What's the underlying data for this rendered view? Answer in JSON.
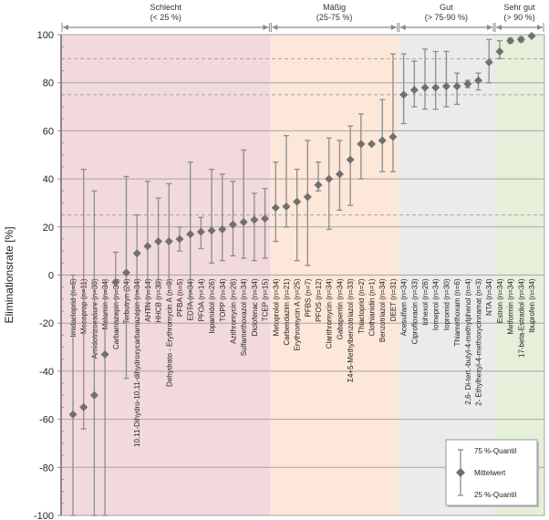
{
  "chart_data": {
    "type": "scatter",
    "subtype": "mean-with-quantile-range",
    "ylabel": "Eliminationsrate [%]",
    "ylim": [
      -100,
      100
    ],
    "yticks": [
      100,
      80,
      60,
      40,
      20,
      0,
      -20,
      -40,
      -60,
      -80,
      -100
    ],
    "grid": true,
    "dashed_reference_lines": [
      90,
      75,
      25
    ],
    "zones": [
      {
        "name": "Schlecht",
        "range_label": "(< 25 %)",
        "color": "#f2d9dc",
        "first": 0,
        "last": 18
      },
      {
        "name": "Mäßig",
        "range_label": "(25-75 %)",
        "color": "#fde7d8",
        "first": 19,
        "last": 30
      },
      {
        "name": "Gut",
        "range_label": "(> 75-90 %)",
        "color": "#ebebeb",
        "first": 31,
        "last": 39
      },
      {
        "name": "Sehr gut",
        "range_label": "(> 90 %)",
        "color": "#e6efd9",
        "first": 40,
        "last": 43
      }
    ],
    "legend": {
      "position": "bottom-right",
      "q75": "75 %-Quantil",
      "mean": "Mittelwert",
      "q25": "25 %-Quantil"
    },
    "substances": [
      {
        "label": "Imidacloprid (n=6)",
        "mean": -58,
        "q75": 0,
        "q25": -100
      },
      {
        "label": "Mecoprop (n=11)",
        "mean": -55,
        "q75": 44,
        "q25": -64
      },
      {
        "label": "Amidotrizoesäure (n=30)",
        "mean": -50,
        "q75": 35,
        "q25": -100
      },
      {
        "label": "Melamin (n=34)",
        "mean": -33,
        "q75": -2,
        "q25": -100
      },
      {
        "label": "Carbamazepin (n=34)",
        "mean": -3,
        "q75": 9.5,
        "q25": -20
      },
      {
        "label": "Terbutryn (24)",
        "mean": 1,
        "q75": 41,
        "q25": -43
      },
      {
        "label": "10,11-Dihydro-10,11-dihydroxycarbamazepin (n=34)",
        "mean": 9,
        "q75": 25,
        "q25": -16
      },
      {
        "label": "AHTN (n=14)",
        "mean": 12,
        "q75": 39,
        "q25": -14
      },
      {
        "label": "HHCB (n=39)",
        "mean": 14,
        "q75": 32,
        "q25": -4
      },
      {
        "label": "Dehydrato - Erythromycin A (n=9)",
        "mean": 14,
        "q75": 38,
        "q25": -4
      },
      {
        "label": "PFBA (n=5)",
        "mean": 15,
        "q75": 20,
        "q25": 10
      },
      {
        "label": "EDTA (n=34)",
        "mean": 17,
        "q75": 47,
        "q25": -14
      },
      {
        "label": "PFOA (n=14)",
        "mean": 18,
        "q75": 24,
        "q25": 11
      },
      {
        "label": "Iopamidol (n=26)",
        "mean": 18.5,
        "q75": 44,
        "q25": 5
      },
      {
        "label": "TOPP (n=34)",
        "mean": 19,
        "q75": 42,
        "q25": 6
      },
      {
        "label": "Azithromycin (n=26)",
        "mean": 21,
        "q75": 39,
        "q25": 8
      },
      {
        "label": "Sulfamethoxazol (n=34)",
        "mean": 22,
        "q75": 52,
        "q25": 7
      },
      {
        "label": "Diclofenac (n=34)",
        "mean": 23,
        "q75": 34,
        "q25": 6
      },
      {
        "label": "TCEP (n=15)",
        "mean": 23.5,
        "q75": 36,
        "q25": 7
      },
      {
        "label": "Metoprolol (n=34)",
        "mean": 28,
        "q75": 47,
        "q25": 14
      },
      {
        "label": "Carbendazim (n=21)",
        "mean": 28.5,
        "q75": 58,
        "q25": 20
      },
      {
        "label": "Erythromycin A (n=25)",
        "mean": 30.5,
        "q75": 44,
        "q25": 6
      },
      {
        "label": "PFBS (n=7)",
        "mean": 32.5,
        "q75": 56,
        "q25": 4
      },
      {
        "label": "PFOS (n=12)",
        "mean": 37.5,
        "q75": 47,
        "q25": 35
      },
      {
        "label": "Clarithromycin (n=34)",
        "mean": 40,
        "q75": 57,
        "q25": 19
      },
      {
        "label": "Gabapentin (n=34)",
        "mean": 42,
        "q75": 56,
        "q25": 27
      },
      {
        "label": "Σ4+5-Methylbenzotriazol (n=33)",
        "mean": 48,
        "q75": 62,
        "q25": 29
      },
      {
        "label": "Thiacloprid (n=2)",
        "mean": 54.5,
        "q75": 67,
        "q25": 40
      },
      {
        "label": "Clothianidin (n=1)",
        "mean": 54.5,
        "q75": 54.5,
        "q25": 54.5
      },
      {
        "label": "Benzotriazol (n=34)",
        "mean": 56,
        "q75": 73,
        "q25": 43
      },
      {
        "label": "DEET (n=31)",
        "mean": 57.5,
        "q75": 92,
        "q25": 43
      },
      {
        "label": "Acesulfam (n=34)",
        "mean": 75,
        "q75": 92,
        "q25": 63
      },
      {
        "label": "Ciprofloxacin (n=33)",
        "mean": 77,
        "q75": 89,
        "q25": 70
      },
      {
        "label": "Iohexol (n=26)",
        "mean": 78,
        "q75": 94,
        "q25": 69
      },
      {
        "label": "Iomeprol (n=34)",
        "mean": 78,
        "q75": 93,
        "q25": 69
      },
      {
        "label": "Iopromid (n=30)",
        "mean": 78.5,
        "q75": 93,
        "q25": 70
      },
      {
        "label": "Thiamethoxam (n=6)",
        "mean": 78.5,
        "q75": 84,
        "q25": 71
      },
      {
        "label": "2,6- Di-tert.-butyl-4-methylphenol (n=4)",
        "mean": 79.5,
        "q75": 81,
        "q25": 78
      },
      {
        "label": "2- Ethylhexyl-4-methoxycinnamat (n=3)",
        "mean": 81,
        "q75": 84,
        "q25": 77
      },
      {
        "label": "NTA (n=34)",
        "mean": 88.5,
        "q75": 98,
        "q25": 80
      },
      {
        "label": "Estron (n=34)",
        "mean": 93,
        "q75": 97.5,
        "q25": 90
      },
      {
        "label": "Metformin (n=34)",
        "mean": 97.5,
        "q75": 98.5,
        "q25": 96.5
      },
      {
        "label": "17-beta-Estradiol (n=34)",
        "mean": 98,
        "q75": 99,
        "q25": 97
      },
      {
        "label": "Ibuprofen (n=34)",
        "mean": 99.5,
        "q75": 100,
        "q25": 99
      }
    ]
  }
}
